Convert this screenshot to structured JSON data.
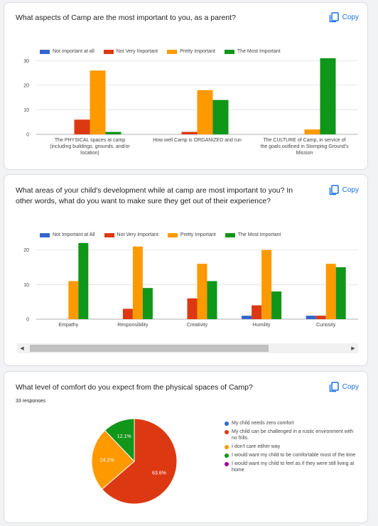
{
  "copy_label": "Copy",
  "card1": {
    "title": "What aspects of Camp are the most important to you, as a parent?"
  },
  "card2": {
    "title": "What areas of your child's development while at camp are most important to you? In other words, what do you want to make sure they get out of their experience?"
  },
  "card3": {
    "title": "What level of comfort do you expect from the physical spaces of Camp?",
    "responses": "33 responses"
  },
  "colors": {
    "blue": "#3366cc",
    "red": "#dc3912",
    "orange": "#ff9900",
    "green": "#109618",
    "purple": "#990099"
  },
  "chart_data": [
    {
      "type": "bar",
      "title": "What aspects of Camp are the most important to you, as a parent?",
      "categories": [
        [
          "The PHYSICAL spaces at camp",
          "(including buildings, grounds, and/or",
          "location)"
        ],
        [
          "How well Camp is ORGANIZED and run"
        ],
        [
          "The CULTURE of Camp, in service of",
          "the goals outlined in Stomping Ground's",
          "Mission"
        ]
      ],
      "series": [
        {
          "name": "Not important at all",
          "color": "#3366cc",
          "values": [
            0,
            0,
            0
          ]
        },
        {
          "name": "Not Very Important",
          "color": "#dc3912",
          "values": [
            6,
            1,
            0
          ]
        },
        {
          "name": "Pretty Important",
          "color": "#ff9900",
          "values": [
            26,
            18,
            2
          ]
        },
        {
          "name": "The Most Important",
          "color": "#109618",
          "values": [
            1,
            14,
            31
          ]
        }
      ],
      "yticks": [
        0,
        10,
        20,
        30
      ],
      "ylim": [
        0,
        33
      ],
      "grid": true,
      "legend": "top"
    },
    {
      "type": "bar",
      "title": "What areas of your child's development while at camp are most important to you? In other words, what do you want to make sure they get out of their experience?",
      "categories": [
        [
          "Empathy"
        ],
        [
          "Responsibility"
        ],
        [
          "Creativity"
        ],
        [
          "Humility"
        ],
        [
          "Curiosity"
        ]
      ],
      "series": [
        {
          "name": "Not Important at All",
          "color": "#3366cc",
          "values": [
            0,
            0,
            0,
            1,
            1
          ]
        },
        {
          "name": "Not Very Important",
          "color": "#dc3912",
          "values": [
            0,
            3,
            6,
            4,
            1
          ]
        },
        {
          "name": "Pretty Important",
          "color": "#ff9900",
          "values": [
            11,
            21,
            16,
            20,
            16
          ]
        },
        {
          "name": "The Most Important",
          "color": "#109618",
          "values": [
            22,
            9,
            11,
            8,
            15
          ]
        }
      ],
      "yticks": [
        0,
        10,
        20
      ],
      "ylim": [
        0,
        23
      ],
      "grid": true,
      "legend": "top"
    },
    {
      "type": "pie",
      "title": "What level of comfort do you expect from the physical spaces of Camp?",
      "slices": [
        {
          "label": "My child needs zero comfort",
          "value": 0,
          "color": "#3366cc",
          "display": ""
        },
        {
          "label": "My child can be challenged in a rustic environment with no frills.",
          "value": 63.6,
          "color": "#dc3912",
          "display": "63.6%"
        },
        {
          "label": "I don't care either way",
          "value": 24.2,
          "color": "#ff9900",
          "display": "24.2%"
        },
        {
          "label": "I would want my child to be comfortable most of the time",
          "value": 12.1,
          "color": "#109618",
          "display": "12.1%"
        },
        {
          "label": "I would want my child to feel as if they were still living at home",
          "value": 0,
          "color": "#990099",
          "display": ""
        }
      ],
      "legend": "right"
    }
  ]
}
